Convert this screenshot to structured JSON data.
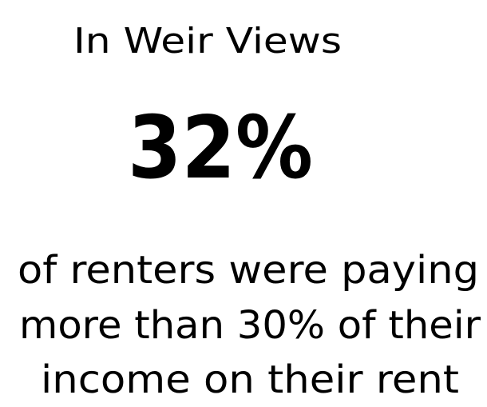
{
  "heading": "In Weir Views",
  "stat": "32%",
  "description_lines": [
    "of renters were paying",
    "more than 30% of their",
    "income on their rent"
  ]
}
